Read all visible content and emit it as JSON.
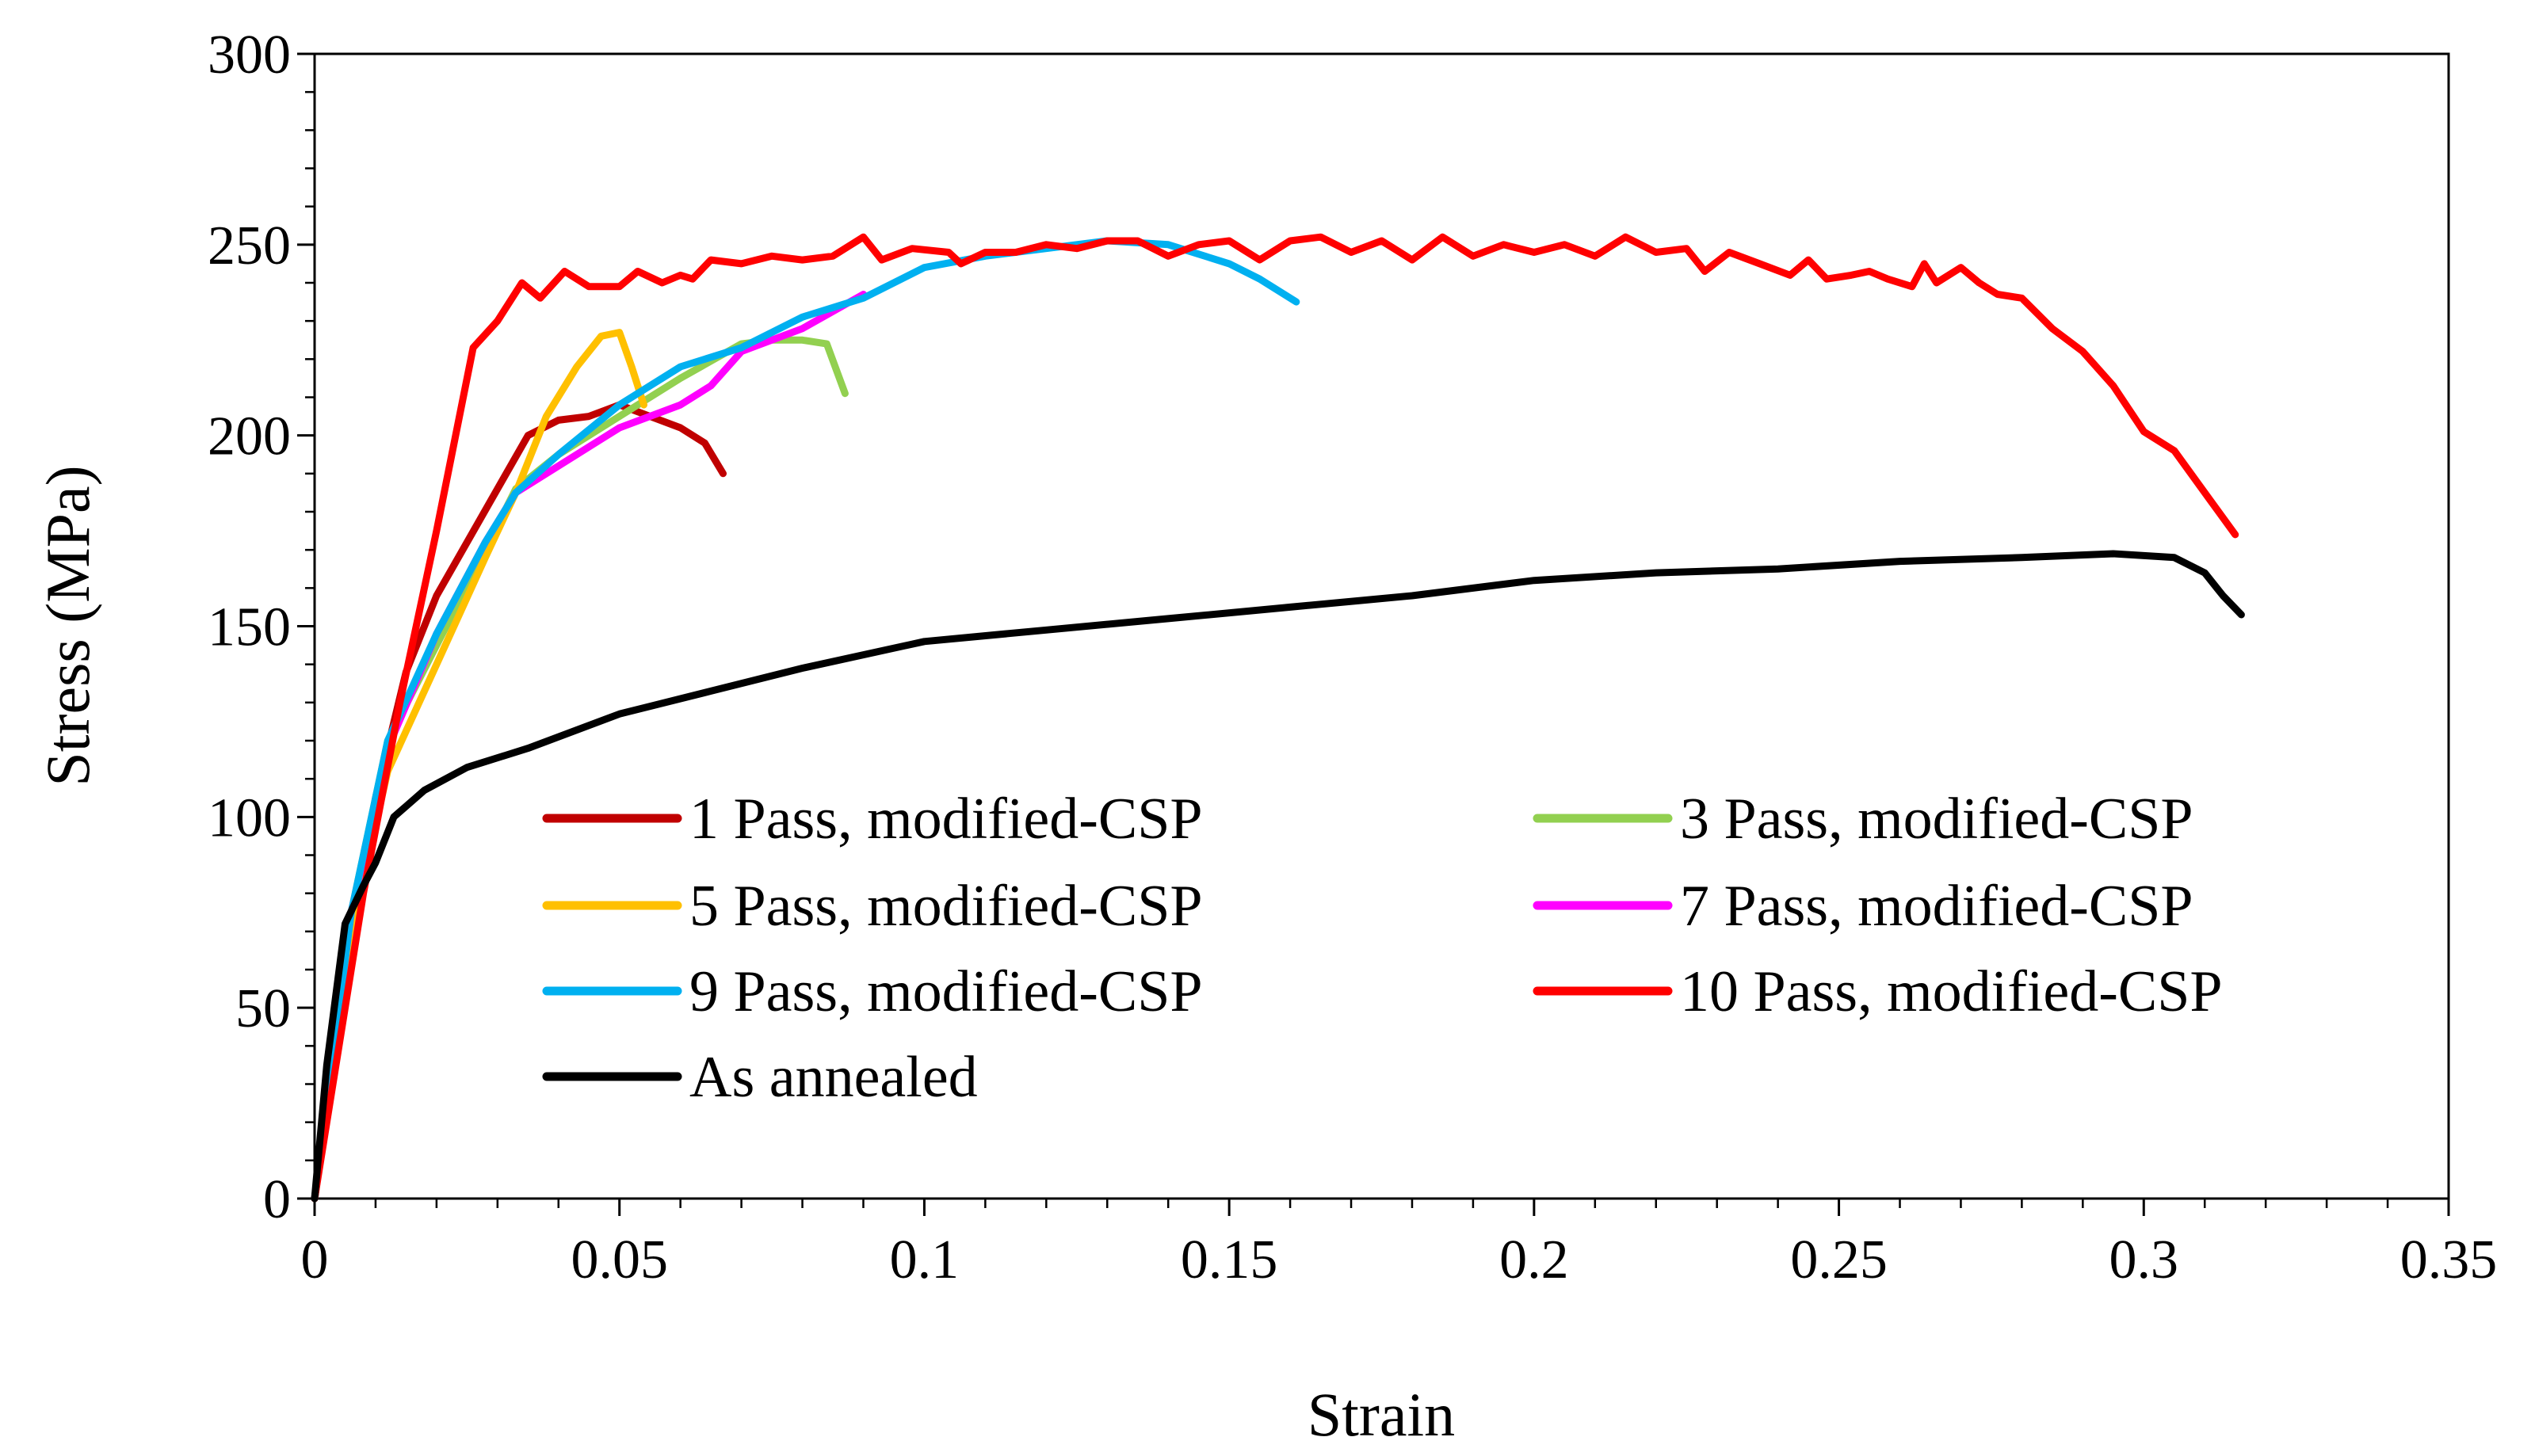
{
  "chart_data": {
    "type": "line",
    "title": "",
    "xlabel": "Strain",
    "ylabel": "Stress (MPa)",
    "xlim": [
      0,
      0.35
    ],
    "ylim": [
      0,
      300
    ],
    "x_ticks": [
      0,
      0.05,
      0.1,
      0.15,
      0.2,
      0.25,
      0.3,
      0.35
    ],
    "x_tick_labels": [
      "0",
      "0.05",
      "0.1",
      "0.15",
      "0.2",
      "0.25",
      "0.3",
      "0.35"
    ],
    "y_ticks": [
      0,
      50,
      100,
      150,
      200,
      250,
      300
    ],
    "y_tick_labels": [
      "0",
      "50",
      "100",
      "150",
      "200",
      "250",
      "300"
    ],
    "grid": false,
    "legend_position": "lower-center",
    "series": [
      {
        "name": "1 Pass, modified-CSP",
        "color": "#c00000",
        "points": [
          [
            0,
            0
          ],
          [
            0.005,
            55
          ],
          [
            0.01,
            105
          ],
          [
            0.015,
            138
          ],
          [
            0.02,
            158
          ],
          [
            0.025,
            172
          ],
          [
            0.03,
            186
          ],
          [
            0.035,
            200
          ],
          [
            0.04,
            204
          ],
          [
            0.045,
            205
          ],
          [
            0.05,
            208
          ],
          [
            0.055,
            205
          ],
          [
            0.06,
            202
          ],
          [
            0.064,
            198
          ],
          [
            0.067,
            190
          ]
        ]
      },
      {
        "name": "3 Pass, modified-CSP",
        "color": "#92d050",
        "points": [
          [
            0,
            0
          ],
          [
            0.006,
            75
          ],
          [
            0.012,
            120
          ],
          [
            0.02,
            145
          ],
          [
            0.028,
            170
          ],
          [
            0.033,
            186
          ],
          [
            0.04,
            195
          ],
          [
            0.05,
            205
          ],
          [
            0.06,
            215
          ],
          [
            0.07,
            224
          ],
          [
            0.075,
            225
          ],
          [
            0.08,
            225
          ],
          [
            0.084,
            224
          ],
          [
            0.087,
            211
          ]
        ]
      },
      {
        "name": "5 Pass, modified-CSP",
        "color": "#ffc000",
        "points": [
          [
            0,
            0
          ],
          [
            0.006,
            70
          ],
          [
            0.012,
            112
          ],
          [
            0.02,
            140
          ],
          [
            0.028,
            168
          ],
          [
            0.033,
            185
          ],
          [
            0.038,
            205
          ],
          [
            0.043,
            218
          ],
          [
            0.047,
            226
          ],
          [
            0.05,
            227
          ],
          [
            0.052,
            218
          ],
          [
            0.054,
            208
          ]
        ]
      },
      {
        "name": "7 Pass, modified-CSP",
        "color": "#ff00ff",
        "points": [
          [
            0,
            0
          ],
          [
            0.006,
            75
          ],
          [
            0.012,
            118
          ],
          [
            0.02,
            148
          ],
          [
            0.028,
            172
          ],
          [
            0.033,
            185
          ],
          [
            0.04,
            192
          ],
          [
            0.05,
            202
          ],
          [
            0.06,
            208
          ],
          [
            0.065,
            213
          ],
          [
            0.07,
            222
          ],
          [
            0.08,
            228
          ],
          [
            0.09,
            237
          ]
        ]
      },
      {
        "name": "9 Pass, modified-CSP",
        "color": "#00b0f0",
        "points": [
          [
            0,
            0
          ],
          [
            0.006,
            75
          ],
          [
            0.012,
            120
          ],
          [
            0.02,
            148
          ],
          [
            0.028,
            172
          ],
          [
            0.033,
            185
          ],
          [
            0.04,
            195
          ],
          [
            0.05,
            208
          ],
          [
            0.06,
            218
          ],
          [
            0.07,
            223
          ],
          [
            0.08,
            231
          ],
          [
            0.09,
            236
          ],
          [
            0.1,
            244
          ],
          [
            0.11,
            247
          ],
          [
            0.12,
            249
          ],
          [
            0.13,
            251
          ],
          [
            0.14,
            250
          ],
          [
            0.15,
            245
          ],
          [
            0.155,
            241
          ],
          [
            0.161,
            235
          ]
        ]
      },
      {
        "name": "10 Pass, modified-CSP",
        "color": "#ff0000",
        "points": [
          [
            0,
            0
          ],
          [
            0.008,
            80
          ],
          [
            0.014,
            130
          ],
          [
            0.02,
            175
          ],
          [
            0.026,
            223
          ],
          [
            0.03,
            230
          ],
          [
            0.034,
            240
          ],
          [
            0.037,
            236
          ],
          [
            0.041,
            243
          ],
          [
            0.045,
            239
          ],
          [
            0.05,
            239
          ],
          [
            0.053,
            243
          ],
          [
            0.057,
            240
          ],
          [
            0.06,
            242
          ],
          [
            0.062,
            241
          ],
          [
            0.065,
            246
          ],
          [
            0.07,
            245
          ],
          [
            0.075,
            247
          ],
          [
            0.08,
            246
          ],
          [
            0.085,
            247
          ],
          [
            0.09,
            252
          ],
          [
            0.093,
            246
          ],
          [
            0.098,
            249
          ],
          [
            0.104,
            248
          ],
          [
            0.106,
            245
          ],
          [
            0.11,
            248
          ],
          [
            0.115,
            248
          ],
          [
            0.12,
            250
          ],
          [
            0.125,
            249
          ],
          [
            0.13,
            251
          ],
          [
            0.135,
            251
          ],
          [
            0.14,
            247
          ],
          [
            0.145,
            250
          ],
          [
            0.15,
            251
          ],
          [
            0.155,
            246
          ],
          [
            0.16,
            251
          ],
          [
            0.165,
            252
          ],
          [
            0.17,
            248
          ],
          [
            0.175,
            251
          ],
          [
            0.18,
            246
          ],
          [
            0.185,
            252
          ],
          [
            0.19,
            247
          ],
          [
            0.195,
            250
          ],
          [
            0.2,
            248
          ],
          [
            0.205,
            250
          ],
          [
            0.21,
            247
          ],
          [
            0.215,
            252
          ],
          [
            0.22,
            248
          ],
          [
            0.225,
            249
          ],
          [
            0.228,
            243
          ],
          [
            0.232,
            248
          ],
          [
            0.237,
            245
          ],
          [
            0.242,
            242
          ],
          [
            0.245,
            246
          ],
          [
            0.248,
            241
          ],
          [
            0.252,
            242
          ],
          [
            0.255,
            243
          ],
          [
            0.258,
            241
          ],
          [
            0.262,
            239
          ],
          [
            0.264,
            245
          ],
          [
            0.266,
            240
          ],
          [
            0.27,
            244
          ],
          [
            0.273,
            240
          ],
          [
            0.276,
            237
          ],
          [
            0.28,
            236
          ],
          [
            0.285,
            228
          ],
          [
            0.29,
            222
          ],
          [
            0.295,
            213
          ],
          [
            0.3,
            201
          ],
          [
            0.305,
            196
          ],
          [
            0.31,
            185
          ],
          [
            0.315,
            174
          ]
        ]
      },
      {
        "name": "As annealed",
        "color": "#000000",
        "points": [
          [
            0,
            0
          ],
          [
            0.002,
            35
          ],
          [
            0.005,
            72
          ],
          [
            0.008,
            82
          ],
          [
            0.01,
            88
          ],
          [
            0.013,
            100
          ],
          [
            0.018,
            107
          ],
          [
            0.025,
            113
          ],
          [
            0.035,
            118
          ],
          [
            0.05,
            127
          ],
          [
            0.065,
            133
          ],
          [
            0.08,
            139
          ],
          [
            0.1,
            146
          ],
          [
            0.12,
            149
          ],
          [
            0.14,
            152
          ],
          [
            0.16,
            155
          ],
          [
            0.18,
            158
          ],
          [
            0.2,
            162
          ],
          [
            0.22,
            164
          ],
          [
            0.24,
            165
          ],
          [
            0.26,
            167
          ],
          [
            0.28,
            168
          ],
          [
            0.295,
            169
          ],
          [
            0.305,
            168
          ],
          [
            0.31,
            164
          ],
          [
            0.313,
            158
          ],
          [
            0.316,
            153
          ]
        ]
      }
    ]
  }
}
